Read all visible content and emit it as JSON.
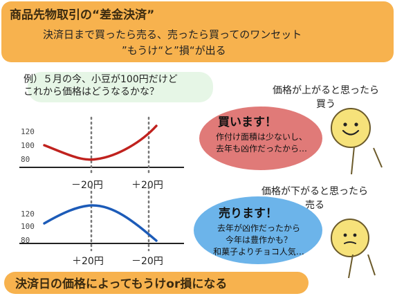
{
  "header": {
    "title": "商品先物取引の“差金決済”",
    "line1": "決済日まで買ったら売る、売ったら買ってのワンセット",
    "line2": "”もうけ“と”損“が出る"
  },
  "example": {
    "line1": "例）５月の今、小豆が100円だけど",
    "line2": "これから価格はどうなるかな？"
  },
  "buy": {
    "heading_line1": "価格が上がると思ったら",
    "heading_line2": "買う",
    "bubble_title": "買います！",
    "bubble_line1": "作付け面積は少ないし、",
    "bubble_line2": "去年も凶作だったから…"
  },
  "sell": {
    "heading_line1": "価格が下がると思ったら",
    "heading_line2": "売る",
    "bubble_title": "売ります！",
    "bubble_line1": "去年が凶作だったから",
    "bubble_line2": "今年は豊作かも？",
    "bubble_line3": "和菓子よりチョコ人気…"
  },
  "charts": {
    "y_ticks": [
      "120",
      "100",
      "80"
    ],
    "top_x_labels": [
      "－20円",
      "＋20円"
    ],
    "bottom_x_labels": [
      "＋20円",
      "－20円"
    ]
  },
  "colors": {
    "banner": "#f7b24e",
    "up_curve": "#c0221e",
    "down_curve": "#1c5bb8",
    "buy_bubble": "#e07a78",
    "sell_bubble": "#6cb4ea",
    "face": "#f6e27a"
  },
  "footer": {
    "text": "決済日の価格によってもうけor損になる"
  }
}
